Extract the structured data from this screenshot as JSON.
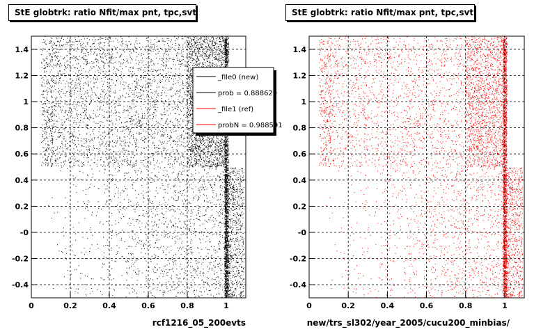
{
  "chart_data": [
    {
      "type": "scatter",
      "title": "StE globtrk: ratio Nfit/max pnt, tpc,svt",
      "xlabel": "rcf1216_05_200evts",
      "ylabel": "",
      "xlim": [
        0,
        1.1
      ],
      "ylim": [
        -0.5,
        1.5
      ],
      "xticks": [
        "0",
        "0.2",
        "0.4",
        "0.6",
        "0.8",
        "1"
      ],
      "yticks": [
        "-0.4",
        "-0.2",
        "-0",
        "0.2",
        "0.4",
        "0.6",
        "0.8",
        "1",
        "1.2",
        "1.4"
      ],
      "grid": true,
      "color": "#000000",
      "legend": {
        "placement": "top-right",
        "entries": [
          {
            "label": "_file0 (new)",
            "color": "#000000"
          },
          {
            "label": "prob = 0.888629",
            "color": "#000000"
          },
          {
            "label": "_file1 (ref)",
            "color": "#ff0000"
          },
          {
            "label": "probN = 0.988591",
            "color": "#ff0000"
          }
        ]
      }
    },
    {
      "type": "scatter",
      "title": "StE globtrk: ratio Nfit/max pnt, tpc,svt",
      "xlabel": "new/trs_sl302/year_2005/cucu200_minbias/",
      "ylabel": "",
      "xlim": [
        0,
        1.1
      ],
      "ylim": [
        -0.5,
        1.5
      ],
      "xticks": [
        "0",
        "0.2",
        "0.4",
        "0.6",
        "0.8",
        "1"
      ],
      "yticks": [
        "-0.4",
        "-0.2",
        "-0",
        "0.2",
        "0.4",
        "0.6",
        "0.8",
        "1",
        "1.2",
        "1.4"
      ],
      "grid": true,
      "color": "#ff0000"
    }
  ]
}
